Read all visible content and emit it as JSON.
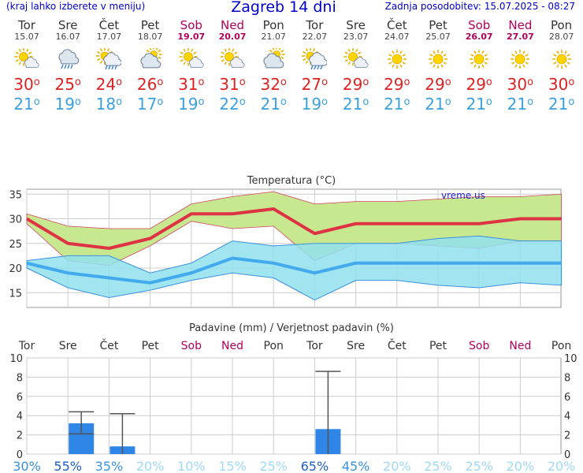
{
  "header": {
    "hint": "(kraj lahko izberete v meniju)",
    "title": "Zagreb 14 dni",
    "updated": "Zadnja posodobitev: 15.07.2025 - 08:27"
  },
  "days": [
    {
      "name": "Tor",
      "date": "15.07",
      "weekend": false,
      "icon": "sun-cloud-icon",
      "max": "30",
      "min": "21"
    },
    {
      "name": "Sre",
      "date": "16.07",
      "weekend": false,
      "icon": "rain-cloud-icon",
      "max": "25",
      "min": "19"
    },
    {
      "name": "Čet",
      "date": "17.07",
      "weekend": false,
      "icon": "sun-rain-icon",
      "max": "24",
      "min": "18"
    },
    {
      "name": "Pet",
      "date": "18.07",
      "weekend": false,
      "icon": "cloud-sun-icon",
      "max": "26",
      "min": "17"
    },
    {
      "name": "Sob",
      "date": "19.07",
      "weekend": true,
      "icon": "sun-cloud-icon",
      "max": "31",
      "min": "19"
    },
    {
      "name": "Ned",
      "date": "20.07",
      "weekend": true,
      "icon": "sun-cloud-icon",
      "max": "31",
      "min": "22"
    },
    {
      "name": "Pon",
      "date": "21.07",
      "weekend": false,
      "icon": "cloud-sun-icon",
      "max": "32",
      "min": "21"
    },
    {
      "name": "Tor",
      "date": "22.07",
      "weekend": false,
      "icon": "sun-rain-icon",
      "max": "27",
      "min": "19"
    },
    {
      "name": "Sre",
      "date": "23.07",
      "weekend": false,
      "icon": "sun-cloud-icon",
      "max": "29",
      "min": "21"
    },
    {
      "name": "Čet",
      "date": "24.07",
      "weekend": false,
      "icon": "sun-icon",
      "max": "29",
      "min": "21"
    },
    {
      "name": "Pet",
      "date": "25.07",
      "weekend": false,
      "icon": "sun-icon",
      "max": "29",
      "min": "21"
    },
    {
      "name": "Sob",
      "date": "26.07",
      "weekend": true,
      "icon": "sun-icon",
      "max": "29",
      "min": "21"
    },
    {
      "name": "Ned",
      "date": "27.07",
      "weekend": true,
      "icon": "sun-icon",
      "max": "30",
      "min": "21"
    },
    {
      "name": "Pon",
      "date": "28.07",
      "weekend": false,
      "icon": "sun-icon",
      "max": "30",
      "min": "21"
    }
  ],
  "colors": {
    "max_line": "#dd3344",
    "min_line": "#44aaee",
    "max_band": "#c8e890",
    "min_band": "#90e0ee",
    "overlap": "#8ad0a0",
    "precip_bar": "#2f86e6",
    "weekend": "#b0005a"
  },
  "chart_data": [
    {
      "type": "area",
      "title": "Temperatura (°C)",
      "watermark": "vreme.us",
      "ylim": [
        12,
        36
      ],
      "yticks": [
        15,
        20,
        25,
        30,
        35
      ],
      "grid": true,
      "series": [
        {
          "values": [
            30,
            25,
            24,
            26,
            31,
            31,
            32,
            27,
            29,
            29,
            29,
            29,
            30,
            30
          ]
        },
        {
          "values": [
            21,
            19,
            18,
            17,
            19,
            22,
            21,
            19,
            21,
            21,
            21,
            21,
            21,
            21
          ]
        },
        {
          "values": [
            31,
            28.5,
            28,
            28,
            33,
            34.5,
            35.5,
            33,
            33.5,
            33.5,
            34,
            34.5,
            34.5,
            35
          ]
        },
        {
          "values": [
            29,
            21.5,
            20.5,
            24.5,
            29.5,
            28,
            28.5,
            21.5,
            25,
            25,
            24.5,
            24,
            25.5,
            25.5
          ]
        },
        {
          "values": [
            21.5,
            22.5,
            22.5,
            19,
            21,
            25.5,
            24.5,
            25,
            25,
            25,
            26,
            26.5,
            25.5,
            25.5
          ]
        },
        {
          "values": [
            20,
            16,
            14,
            15.5,
            17.5,
            19,
            18,
            13.5,
            17.5,
            17.5,
            16.5,
            16,
            17,
            16.5
          ]
        }
      ]
    },
    {
      "type": "bar",
      "title": "Padavine (mm) / Verjetnost padavin (%)",
      "categories": [
        "Tor",
        "Sre",
        "Čet",
        "Pet",
        "Sob",
        "Ned",
        "Pon",
        "Tor",
        "Sre",
        "Čet",
        "Pet",
        "Sob",
        "Ned",
        "Pon"
      ],
      "weekend": [
        false,
        false,
        false,
        false,
        true,
        true,
        false,
        false,
        false,
        false,
        false,
        true,
        true,
        false
      ],
      "ylim": [
        0,
        10
      ],
      "yticks": [
        0,
        2,
        4,
        6,
        8,
        10
      ],
      "grid": true,
      "values": [
        0,
        3.2,
        0.8,
        0,
        0,
        0,
        0,
        2.6,
        0,
        0,
        0,
        0,
        0,
        0
      ],
      "ranges": [
        null,
        [
          2.1,
          4.4
        ],
        [
          0,
          4.2
        ],
        null,
        null,
        null,
        null,
        [
          0,
          8.6
        ],
        null,
        null,
        null,
        null,
        null,
        null
      ],
      "probability": [
        "30%",
        "55%",
        "35%",
        "20%",
        "10%",
        "15%",
        "25%",
        "65%",
        "45%",
        "20%",
        "25%",
        "25%",
        "20%",
        "20%"
      ],
      "probability_values": [
        30,
        55,
        35,
        20,
        10,
        15,
        25,
        65,
        45,
        20,
        25,
        25,
        20,
        20
      ]
    }
  ]
}
